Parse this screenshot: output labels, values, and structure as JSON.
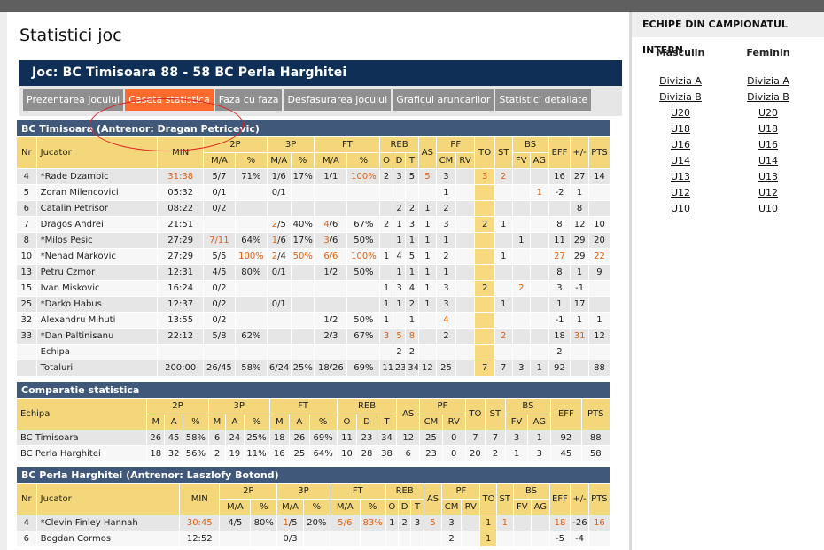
{
  "page_title": "Statistici joc",
  "game_title": "Joc: BC Timisoara 88 - 58 BC Perla Harghitei",
  "tabs": [
    "Prezentarea jocului",
    "Caseta statistica",
    "Faza cu faza",
    "Desfasurarea jocului",
    "Graficul aruncarilor",
    "Statistici detaliate"
  ],
  "active_tab": 1,
  "team1": {
    "title": "BC Timisoara (Antrenor: Dragan Petricevic)",
    "players": [
      {
        "nr": "4",
        "name": "*Rade Dzambic",
        "min": "31:38",
        "p2": "5/7",
        "p2p": "71%",
        "p3": "1/6",
        "p3p": "17%",
        "ft": "1/1",
        "ftp": "100%",
        "o": "2",
        "d": "3",
        "t": "5",
        "as": "5",
        "cm": "3",
        "rv": "",
        "to": "3",
        "st": "2",
        "fv": "",
        "ag": "",
        "eff": "16",
        "pm": "27",
        "pts": "14",
        "hl": [
          "min",
          "ftp",
          "as",
          "to",
          "st"
        ]
      },
      {
        "nr": "5",
        "name": "Zoran Milencovici",
        "min": "05:32",
        "p2": "0/1",
        "p2p": "",
        "p3": "0/1",
        "p3p": "",
        "ft": "",
        "ftp": "",
        "o": "",
        "d": "",
        "t": "",
        "as": "",
        "cm": "1",
        "rv": "",
        "to": "",
        "st": "",
        "fv": "",
        "ag": "1",
        "eff": "-2",
        "pm": "1",
        "pts": "",
        "hl": [
          "ag"
        ]
      },
      {
        "nr": "6",
        "name": "Catalin Petrisor",
        "min": "08:22",
        "p2": "0/2",
        "p2p": "",
        "p3": "",
        "p3p": "",
        "ft": "",
        "ftp": "",
        "o": "",
        "d": "2",
        "t": "2",
        "as": "1",
        "cm": "2",
        "rv": "",
        "to": "",
        "st": "",
        "fv": "",
        "ag": "",
        "eff": "",
        "pm": "8",
        "pts": "",
        "hl": []
      },
      {
        "nr": "7",
        "name": "Dragos Andrei",
        "min": "21:51",
        "p2": "",
        "p2p": "",
        "p3": "2/5",
        "p3p": "40%",
        "ft": "4/6",
        "ftp": "67%",
        "o": "2",
        "d": "1",
        "t": "3",
        "as": "1",
        "cm": "3",
        "rv": "",
        "to": "2",
        "st": "1",
        "fv": "",
        "ag": "",
        "eff": "8",
        "pm": "12",
        "pts": "10",
        "hl": [
          "p3m",
          "ftm"
        ]
      },
      {
        "nr": "8",
        "name": "*Milos Pesic",
        "min": "27:29",
        "p2": "7/11",
        "p2p": "64%",
        "p3": "1/6",
        "p3p": "17%",
        "ft": "3/6",
        "ftp": "50%",
        "o": "",
        "d": "1",
        "t": "1",
        "as": "1",
        "cm": "1",
        "rv": "",
        "to": "",
        "st": "",
        "fv": "1",
        "ag": "",
        "eff": "11",
        "pm": "29",
        "pts": "20",
        "hl": [
          "p2",
          "p3m",
          "ftm"
        ]
      },
      {
        "nr": "10",
        "name": "*Nenad Markovic",
        "min": "27:29",
        "p2": "5/5",
        "p2p": "100%",
        "p3": "2/4",
        "p3p": "50%",
        "ft": "6/6",
        "ftp": "100%",
        "o": "1",
        "d": "4",
        "t": "5",
        "as": "1",
        "cm": "2",
        "rv": "",
        "to": "",
        "st": "1",
        "fv": "",
        "ag": "",
        "eff": "27",
        "pm": "29",
        "pts": "22",
        "hl": [
          "p2p",
          "p3m",
          "p3p",
          "ft",
          "ftp",
          "eff",
          "pts"
        ]
      },
      {
        "nr": "13",
        "name": "Petru Czmor",
        "min": "12:31",
        "p2": "4/5",
        "p2p": "80%",
        "p3": "0/1",
        "p3p": "",
        "ft": "1/2",
        "ftp": "50%",
        "o": "",
        "d": "1",
        "t": "1",
        "as": "1",
        "cm": "1",
        "rv": "",
        "to": "",
        "st": "",
        "fv": "",
        "ag": "",
        "eff": "8",
        "pm": "1",
        "pts": "9",
        "hl": []
      },
      {
        "nr": "15",
        "name": "Ivan Miskovic",
        "min": "16:24",
        "p2": "0/2",
        "p2p": "",
        "p3": "",
        "p3p": "",
        "ft": "",
        "ftp": "",
        "o": "1",
        "d": "3",
        "t": "4",
        "as": "1",
        "cm": "3",
        "rv": "",
        "to": "2",
        "st": "",
        "fv": "2",
        "ag": "",
        "eff": "3",
        "pm": "-1",
        "pts": "",
        "hl": [
          "fv"
        ]
      },
      {
        "nr": "25",
        "name": "*Darko Habus",
        "min": "12:37",
        "p2": "0/2",
        "p2p": "",
        "p3": "0/1",
        "p3p": "",
        "ft": "",
        "ftp": "",
        "o": "1",
        "d": "1",
        "t": "2",
        "as": "1",
        "cm": "3",
        "rv": "",
        "to": "",
        "st": "1",
        "fv": "",
        "ag": "",
        "eff": "1",
        "pm": "17",
        "pts": "",
        "hl": []
      },
      {
        "nr": "32",
        "name": "Alexandru Mihuti",
        "min": "13:55",
        "p2": "0/2",
        "p2p": "",
        "p3": "",
        "p3p": "",
        "ft": "1/2",
        "ftp": "50%",
        "o": "1",
        "d": "",
        "t": "1",
        "as": "",
        "cm": "4",
        "rv": "",
        "to": "",
        "st": "",
        "fv": "",
        "ag": "",
        "eff": "-1",
        "pm": "1",
        "pts": "1",
        "hl": [
          "cm"
        ]
      },
      {
        "nr": "33",
        "name": "*Dan Paltinisanu",
        "min": "22:12",
        "p2": "5/8",
        "p2p": "62%",
        "p3": "",
        "p3p": "",
        "ft": "2/3",
        "ftp": "67%",
        "o": "3",
        "d": "5",
        "t": "8",
        "as": "",
        "cm": "2",
        "rv": "",
        "to": "",
        "st": "2",
        "fv": "",
        "ag": "",
        "eff": "18",
        "pm": "31",
        "pts": "12",
        "hl": [
          "o",
          "d",
          "t",
          "st",
          "pm"
        ]
      },
      {
        "nr": "",
        "name": "Echipa",
        "min": "",
        "p2": "",
        "p2p": "",
        "p3": "",
        "p3p": "",
        "ft": "",
        "ftp": "",
        "o": "",
        "d": "2",
        "t": "2",
        "as": "",
        "cm": "",
        "rv": "",
        "to": "",
        "st": "",
        "fv": "",
        "ag": "",
        "eff": "2",
        "pm": "",
        "pts": "",
        "hl": []
      },
      {
        "nr": "",
        "name": "Totaluri",
        "min": "200:00",
        "p2": "26/45",
        "p2p": "58%",
        "p3": "6/24",
        "p3p": "25%",
        "ft": "18/26",
        "ftp": "69%",
        "o": "11",
        "d": "23",
        "t": "34",
        "as": "12",
        "cm": "25",
        "rv": "",
        "to": "7",
        "st": "7",
        "fv": "3",
        "ag": "1",
        "eff": "92",
        "pm": "",
        "pts": "88",
        "hl": []
      }
    ]
  },
  "headers": {
    "nr": "Nr",
    "jucator": "Jucator",
    "min": "MIN",
    "p2": "2P",
    "p3": "3P",
    "ft": "FT",
    "reb": "REB",
    "as": "AS",
    "pf": "PF",
    "to": "TO",
    "st": "ST",
    "bs": "BS",
    "eff": "EFF",
    "pm": "+/-",
    "pts": "PTS",
    "ma": "M/A",
    "pct": "%",
    "o": "O",
    "d": "D",
    "t": "T",
    "cm": "CM",
    "rv": "RV",
    "fv": "FV",
    "ag": "AG",
    "m": "M",
    "a": "A",
    "echipa": "Echipa"
  },
  "comparison": {
    "title": "Comparatie statistica",
    "rows": [
      {
        "team": "BC Timisoara",
        "p2m": "26",
        "p2a": "45",
        "p2p": "58%",
        "p3m": "6",
        "p3a": "24",
        "p3p": "25%",
        "ftm": "18",
        "fta": "26",
        "ftp": "69%",
        "o": "11",
        "d": "23",
        "t": "34",
        "as": "12",
        "cm": "25",
        "rv": "0",
        "to": "7",
        "st": "7",
        "fv": "3",
        "ag": "1",
        "eff": "92",
        "pts": "88"
      },
      {
        "team": "BC Perla Harghitei",
        "p2m": "18",
        "p2a": "32",
        "p2p": "56%",
        "p3m": "2",
        "p3a": "19",
        "p3p": "11%",
        "ftm": "16",
        "fta": "25",
        "ftp": "64%",
        "o": "10",
        "d": "28",
        "t": "38",
        "as": "6",
        "cm": "23",
        "rv": "0",
        "to": "20",
        "st": "2",
        "fv": "1",
        "ag": "3",
        "eff": "45",
        "pts": "58"
      }
    ]
  },
  "team2": {
    "title": "BC Perla Harghitei (Antrenor: Laszlofy Botond)",
    "players": [
      {
        "nr": "4",
        "name": "*Clevin Finley Hannah",
        "min": "30:45",
        "p2": "4/5",
        "p2p": "80%",
        "p3": "1/5",
        "p3p": "20%",
        "ft": "5/6",
        "ftp": "83%",
        "o": "1",
        "d": "2",
        "t": "3",
        "as": "5",
        "cm": "3",
        "rv": "",
        "to": "1",
        "st": "1",
        "fv": "",
        "ag": "",
        "eff": "18",
        "pm": "-26",
        "pts": "16",
        "hl": [
          "min",
          "p3m",
          "ft",
          "ftp",
          "as",
          "st",
          "eff",
          "pts"
        ]
      },
      {
        "nr": "6",
        "name": "Bogdan Cormos",
        "min": "12:52",
        "p2": "",
        "p2p": "",
        "p3": "0/3",
        "p3p": "",
        "ft": "",
        "ftp": "",
        "o": "",
        "d": "",
        "t": "",
        "as": "",
        "cm": "2",
        "rv": "",
        "to": "1",
        "st": "",
        "fv": "",
        "ag": "",
        "eff": "-5",
        "pm": "-4",
        "pts": "",
        "hl": []
      }
    ]
  },
  "sidebar": {
    "title": "ECHIPE DIN CAMPIONATUL INTERN",
    "masculin": {
      "label": "Masculin",
      "links": [
        "Divizia A",
        "Divizia B",
        "U20",
        "U18",
        "U16",
        "U14",
        "U13",
        "U12",
        "U10"
      ]
    },
    "feminin": {
      "label": "Feminin",
      "links": [
        "Divizia A",
        "Divizia B",
        "U20",
        "U18",
        "U16",
        "U14",
        "U13",
        "U12",
        "U10"
      ]
    }
  }
}
